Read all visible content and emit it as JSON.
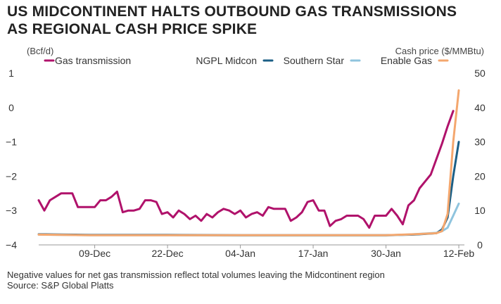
{
  "title_lines": [
    "US Midcontinent halts outbound gas transmissions",
    "as regional cash price spike"
  ],
  "footnote": "Negative values for net gas transmission reflect total volumes leaving the Midcontinent region",
  "source": "Source: S&P Global Platts",
  "chart_data": {
    "type": "line",
    "left_axis": {
      "label": "(Bcf/d)",
      "ticks": [
        1,
        0,
        -1,
        -2,
        -3,
        -4
      ],
      "range": [
        -4,
        1
      ]
    },
    "right_axis": {
      "label": "Cash price ($/MMBtu)",
      "ticks": [
        0,
        10,
        20,
        30,
        40,
        50
      ],
      "range": [
        0,
        50
      ]
    },
    "x_axis": {
      "start": "2020-11-29",
      "end": "2021-02-13",
      "tick_labels": [
        {
          "label": "09-Dec",
          "date": "2020-12-09"
        },
        {
          "label": "22-Dec",
          "date": "2020-12-22"
        },
        {
          "label": "04-Jan",
          "date": "2021-01-04"
        },
        {
          "label": "17-Jan",
          "date": "2021-01-17"
        },
        {
          "label": "30-Jan",
          "date": "2021-01-30"
        },
        {
          "label": "12-Feb",
          "date": "2021-02-12"
        }
      ]
    },
    "grid": "none",
    "legend": {
      "placement": "top",
      "entries": [
        "Gas transmission",
        "NGPL Midcon",
        "Southern Star",
        "Enable Gas"
      ]
    },
    "series": [
      {
        "name": "Gas transmission",
        "axis": "left",
        "color": "#b0126b",
        "x": [
          "2020-11-29",
          "2020-11-30",
          "2020-12-01",
          "2020-12-02",
          "2020-12-03",
          "2020-12-04",
          "2020-12-05",
          "2020-12-06",
          "2020-12-07",
          "2020-12-08",
          "2020-12-09",
          "2020-12-10",
          "2020-12-11",
          "2020-12-12",
          "2020-12-13",
          "2020-12-14",
          "2020-12-15",
          "2020-12-16",
          "2020-12-17",
          "2020-12-18",
          "2020-12-19",
          "2020-12-20",
          "2020-12-21",
          "2020-12-22",
          "2020-12-23",
          "2020-12-24",
          "2020-12-25",
          "2020-12-26",
          "2020-12-27",
          "2020-12-28",
          "2020-12-29",
          "2020-12-30",
          "2020-12-31",
          "2021-01-01",
          "2021-01-02",
          "2021-01-03",
          "2021-01-04",
          "2021-01-05",
          "2021-01-06",
          "2021-01-07",
          "2021-01-08",
          "2021-01-09",
          "2021-01-10",
          "2021-01-11",
          "2021-01-12",
          "2021-01-13",
          "2021-01-14",
          "2021-01-15",
          "2021-01-16",
          "2021-01-17",
          "2021-01-18",
          "2021-01-19",
          "2021-01-20",
          "2021-01-21",
          "2021-01-22",
          "2021-01-23",
          "2021-01-24",
          "2021-01-25",
          "2021-01-26",
          "2021-01-27",
          "2021-01-28",
          "2021-01-29",
          "2021-01-30",
          "2021-01-31",
          "2021-02-01",
          "2021-02-02",
          "2021-02-03",
          "2021-02-04",
          "2021-02-05",
          "2021-02-06",
          "2021-02-07",
          "2021-02-08",
          "2021-02-09",
          "2021-02-10",
          "2021-02-11"
        ],
        "values": [
          -2.7,
          -3.0,
          -2.7,
          -2.6,
          -2.5,
          -2.5,
          -2.5,
          -2.9,
          -2.9,
          -2.9,
          -2.9,
          -2.7,
          -2.7,
          -2.6,
          -2.45,
          -3.05,
          -3.0,
          -3.0,
          -2.95,
          -2.7,
          -2.7,
          -2.75,
          -3.1,
          -3.05,
          -3.2,
          -3.0,
          -3.1,
          -3.25,
          -3.15,
          -3.3,
          -3.1,
          -3.2,
          -3.05,
          -2.95,
          -3.0,
          -3.1,
          -3.0,
          -3.2,
          -3.1,
          -3.05,
          -3.15,
          -2.9,
          -2.95,
          -2.95,
          -2.95,
          -3.3,
          -3.2,
          -3.05,
          -2.75,
          -2.7,
          -3.0,
          -3.0,
          -3.45,
          -3.3,
          -3.25,
          -3.15,
          -3.15,
          -3.15,
          -3.25,
          -3.5,
          -3.15,
          -3.15,
          -3.15,
          -2.95,
          -3.15,
          -3.4,
          -2.85,
          -2.7,
          -2.35,
          -2.15,
          -1.95,
          -1.5,
          -1.05,
          -0.55,
          -0.1
        ]
      },
      {
        "name": "NGPL Midcon",
        "axis": "right",
        "color": "#1b5f86",
        "x": [
          "2020-11-29",
          "2020-12-09",
          "2020-12-22",
          "2021-01-04",
          "2021-01-17",
          "2021-01-30",
          "2021-02-04",
          "2021-02-08",
          "2021-02-09",
          "2021-02-10",
          "2021-02-11",
          "2021-02-12"
        ],
        "values": [
          3.1,
          2.9,
          2.9,
          2.8,
          2.8,
          2.8,
          3.0,
          3.4,
          4.5,
          8.0,
          20.0,
          30.0
        ]
      },
      {
        "name": "Southern Star",
        "axis": "right",
        "color": "#8fc4de",
        "x": [
          "2020-11-29",
          "2020-12-09",
          "2020-12-22",
          "2021-01-04",
          "2021-01-17",
          "2021-01-30",
          "2021-02-04",
          "2021-02-08",
          "2021-02-09",
          "2021-02-10",
          "2021-02-11",
          "2021-02-12"
        ],
        "values": [
          3.0,
          2.8,
          2.8,
          2.7,
          2.7,
          2.7,
          3.1,
          3.5,
          4.0,
          5.0,
          8.5,
          12.0
        ]
      },
      {
        "name": "Enable Gas",
        "axis": "right",
        "color": "#f4a76e",
        "x": [
          "2020-11-29",
          "2020-12-09",
          "2020-12-22",
          "2021-01-04",
          "2021-01-17",
          "2021-01-30",
          "2021-02-04",
          "2021-02-08",
          "2021-02-09",
          "2021-02-10",
          "2021-02-11",
          "2021-02-12"
        ],
        "values": [
          3.0,
          2.8,
          2.8,
          2.8,
          2.8,
          2.8,
          3.1,
          3.4,
          4.0,
          9.0,
          30.0,
          45.0
        ]
      }
    ]
  }
}
